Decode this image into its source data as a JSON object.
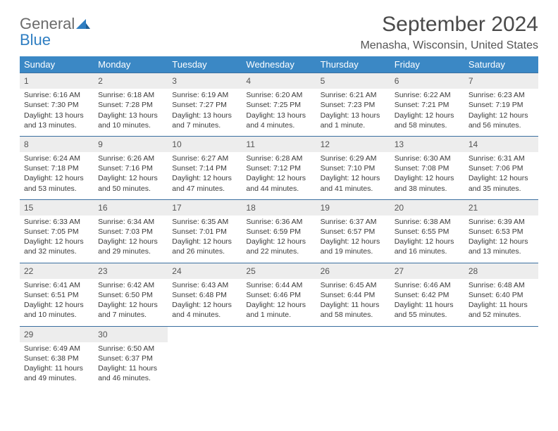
{
  "brand": {
    "word1": "General",
    "word2": "Blue",
    "logo_fill": "#2f7ec2",
    "text_gray": "#6b6b6b"
  },
  "title": "September 2024",
  "location": "Menasha, Wisconsin, United States",
  "colors": {
    "header_bg": "#3b88c5",
    "header_text": "#ffffff",
    "row_border": "#3b6fa0",
    "daynum_bg": "#ededed",
    "body_text": "#3a3a3a"
  },
  "days_of_week": [
    "Sunday",
    "Monday",
    "Tuesday",
    "Wednesday",
    "Thursday",
    "Friday",
    "Saturday"
  ],
  "weeks": [
    [
      {
        "n": "1",
        "sr": "Sunrise: 6:16 AM",
        "ss": "Sunset: 7:30 PM",
        "dl1": "Daylight: 13 hours",
        "dl2": "and 13 minutes."
      },
      {
        "n": "2",
        "sr": "Sunrise: 6:18 AM",
        "ss": "Sunset: 7:28 PM",
        "dl1": "Daylight: 13 hours",
        "dl2": "and 10 minutes."
      },
      {
        "n": "3",
        "sr": "Sunrise: 6:19 AM",
        "ss": "Sunset: 7:27 PM",
        "dl1": "Daylight: 13 hours",
        "dl2": "and 7 minutes."
      },
      {
        "n": "4",
        "sr": "Sunrise: 6:20 AM",
        "ss": "Sunset: 7:25 PM",
        "dl1": "Daylight: 13 hours",
        "dl2": "and 4 minutes."
      },
      {
        "n": "5",
        "sr": "Sunrise: 6:21 AM",
        "ss": "Sunset: 7:23 PM",
        "dl1": "Daylight: 13 hours",
        "dl2": "and 1 minute."
      },
      {
        "n": "6",
        "sr": "Sunrise: 6:22 AM",
        "ss": "Sunset: 7:21 PM",
        "dl1": "Daylight: 12 hours",
        "dl2": "and 58 minutes."
      },
      {
        "n": "7",
        "sr": "Sunrise: 6:23 AM",
        "ss": "Sunset: 7:19 PM",
        "dl1": "Daylight: 12 hours",
        "dl2": "and 56 minutes."
      }
    ],
    [
      {
        "n": "8",
        "sr": "Sunrise: 6:24 AM",
        "ss": "Sunset: 7:18 PM",
        "dl1": "Daylight: 12 hours",
        "dl2": "and 53 minutes."
      },
      {
        "n": "9",
        "sr": "Sunrise: 6:26 AM",
        "ss": "Sunset: 7:16 PM",
        "dl1": "Daylight: 12 hours",
        "dl2": "and 50 minutes."
      },
      {
        "n": "10",
        "sr": "Sunrise: 6:27 AM",
        "ss": "Sunset: 7:14 PM",
        "dl1": "Daylight: 12 hours",
        "dl2": "and 47 minutes."
      },
      {
        "n": "11",
        "sr": "Sunrise: 6:28 AM",
        "ss": "Sunset: 7:12 PM",
        "dl1": "Daylight: 12 hours",
        "dl2": "and 44 minutes."
      },
      {
        "n": "12",
        "sr": "Sunrise: 6:29 AM",
        "ss": "Sunset: 7:10 PM",
        "dl1": "Daylight: 12 hours",
        "dl2": "and 41 minutes."
      },
      {
        "n": "13",
        "sr": "Sunrise: 6:30 AM",
        "ss": "Sunset: 7:08 PM",
        "dl1": "Daylight: 12 hours",
        "dl2": "and 38 minutes."
      },
      {
        "n": "14",
        "sr": "Sunrise: 6:31 AM",
        "ss": "Sunset: 7:06 PM",
        "dl1": "Daylight: 12 hours",
        "dl2": "and 35 minutes."
      }
    ],
    [
      {
        "n": "15",
        "sr": "Sunrise: 6:33 AM",
        "ss": "Sunset: 7:05 PM",
        "dl1": "Daylight: 12 hours",
        "dl2": "and 32 minutes."
      },
      {
        "n": "16",
        "sr": "Sunrise: 6:34 AM",
        "ss": "Sunset: 7:03 PM",
        "dl1": "Daylight: 12 hours",
        "dl2": "and 29 minutes."
      },
      {
        "n": "17",
        "sr": "Sunrise: 6:35 AM",
        "ss": "Sunset: 7:01 PM",
        "dl1": "Daylight: 12 hours",
        "dl2": "and 26 minutes."
      },
      {
        "n": "18",
        "sr": "Sunrise: 6:36 AM",
        "ss": "Sunset: 6:59 PM",
        "dl1": "Daylight: 12 hours",
        "dl2": "and 22 minutes."
      },
      {
        "n": "19",
        "sr": "Sunrise: 6:37 AM",
        "ss": "Sunset: 6:57 PM",
        "dl1": "Daylight: 12 hours",
        "dl2": "and 19 minutes."
      },
      {
        "n": "20",
        "sr": "Sunrise: 6:38 AM",
        "ss": "Sunset: 6:55 PM",
        "dl1": "Daylight: 12 hours",
        "dl2": "and 16 minutes."
      },
      {
        "n": "21",
        "sr": "Sunrise: 6:39 AM",
        "ss": "Sunset: 6:53 PM",
        "dl1": "Daylight: 12 hours",
        "dl2": "and 13 minutes."
      }
    ],
    [
      {
        "n": "22",
        "sr": "Sunrise: 6:41 AM",
        "ss": "Sunset: 6:51 PM",
        "dl1": "Daylight: 12 hours",
        "dl2": "and 10 minutes."
      },
      {
        "n": "23",
        "sr": "Sunrise: 6:42 AM",
        "ss": "Sunset: 6:50 PM",
        "dl1": "Daylight: 12 hours",
        "dl2": "and 7 minutes."
      },
      {
        "n": "24",
        "sr": "Sunrise: 6:43 AM",
        "ss": "Sunset: 6:48 PM",
        "dl1": "Daylight: 12 hours",
        "dl2": "and 4 minutes."
      },
      {
        "n": "25",
        "sr": "Sunrise: 6:44 AM",
        "ss": "Sunset: 6:46 PM",
        "dl1": "Daylight: 12 hours",
        "dl2": "and 1 minute."
      },
      {
        "n": "26",
        "sr": "Sunrise: 6:45 AM",
        "ss": "Sunset: 6:44 PM",
        "dl1": "Daylight: 11 hours",
        "dl2": "and 58 minutes."
      },
      {
        "n": "27",
        "sr": "Sunrise: 6:46 AM",
        "ss": "Sunset: 6:42 PM",
        "dl1": "Daylight: 11 hours",
        "dl2": "and 55 minutes."
      },
      {
        "n": "28",
        "sr": "Sunrise: 6:48 AM",
        "ss": "Sunset: 6:40 PM",
        "dl1": "Daylight: 11 hours",
        "dl2": "and 52 minutes."
      }
    ],
    [
      {
        "n": "29",
        "sr": "Sunrise: 6:49 AM",
        "ss": "Sunset: 6:38 PM",
        "dl1": "Daylight: 11 hours",
        "dl2": "and 49 minutes."
      },
      {
        "n": "30",
        "sr": "Sunrise: 6:50 AM",
        "ss": "Sunset: 6:37 PM",
        "dl1": "Daylight: 11 hours",
        "dl2": "and 46 minutes."
      },
      null,
      null,
      null,
      null,
      null
    ]
  ]
}
